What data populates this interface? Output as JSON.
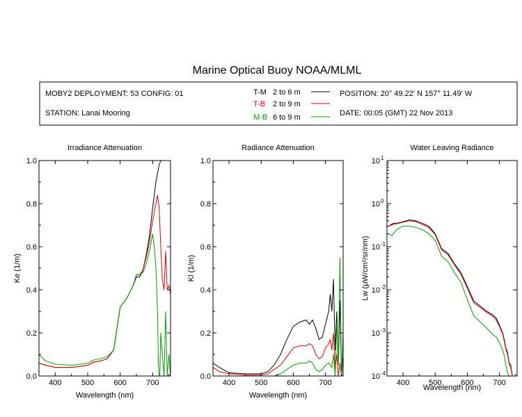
{
  "title": "Marine Optical Buoy NOAA/MLML",
  "info": {
    "deployment": "MOBY2 DEPLOYMENT: 53 CONFIG: 01",
    "station": "STATION: Lanai Mooring",
    "position": "POSITION: 20° 49.22' N   157° 11.49' W",
    "date": "DATE: 00:05 (GMT) 22 Nov 2013"
  },
  "legend": [
    {
      "code": "T-M",
      "range": "2 to 6  m",
      "color": "#000000"
    },
    {
      "code": "T-B",
      "range": "2 to 9  m",
      "color": "#e00000"
    },
    {
      "code": "M-B",
      "range": "6 to 9  m",
      "color": "#00a000"
    }
  ],
  "chart_data": [
    {
      "type": "line",
      "title": "Irradiance Attenuation",
      "xlabel": "Wavelength (nm)",
      "ylabel": "Ke  (1/m)",
      "xlim": [
        350,
        755
      ],
      "ylim": [
        0,
        1.0
      ],
      "xticks": [
        400,
        500,
        600,
        700
      ],
      "yticks": [
        "0.0",
        "0.2",
        "0.4",
        "0.6",
        "0.8",
        "1.0"
      ],
      "series": [
        {
          "name": "T-M",
          "color": "#000000",
          "x": [
            350,
            370,
            400,
            450,
            480,
            500,
            520,
            540,
            560,
            580,
            600,
            610,
            620,
            640,
            650,
            660,
            670,
            680,
            690,
            700,
            710,
            720,
            725,
            730,
            740,
            750,
            755
          ],
          "y": [
            0.06,
            0.05,
            0.04,
            0.04,
            0.045,
            0.05,
            0.065,
            0.07,
            0.08,
            0.12,
            0.32,
            0.34,
            0.36,
            0.42,
            0.46,
            0.46,
            0.49,
            0.56,
            0.65,
            0.78,
            0.9,
            0.98,
            1.0,
            1.0,
            1.0,
            1.0,
            1.0
          ]
        },
        {
          "name": "T-B",
          "color": "#e00000",
          "x": [
            350,
            370,
            400,
            450,
            480,
            500,
            520,
            540,
            560,
            580,
            600,
            610,
            620,
            640,
            650,
            660,
            670,
            680,
            690,
            700,
            710,
            715,
            720,
            725,
            730,
            735,
            740,
            745,
            750,
            755
          ],
          "y": [
            0.06,
            0.05,
            0.04,
            0.04,
            0.045,
            0.05,
            0.065,
            0.07,
            0.08,
            0.12,
            0.32,
            0.34,
            0.36,
            0.42,
            0.47,
            0.47,
            0.49,
            0.55,
            0.62,
            0.72,
            0.8,
            0.84,
            0.78,
            0.6,
            0.45,
            0.4,
            0.58,
            0.4,
            0.42,
            0.38
          ]
        },
        {
          "name": "M-B",
          "color": "#00a000",
          "x": [
            350,
            370,
            400,
            450,
            480,
            500,
            520,
            540,
            560,
            580,
            600,
            610,
            620,
            640,
            650,
            660,
            670,
            680,
            690,
            700,
            705,
            710,
            715,
            718,
            720,
            722,
            725,
            730,
            735,
            740,
            745,
            750,
            755
          ],
          "y": [
            0.1,
            0.07,
            0.055,
            0.05,
            0.055,
            0.06,
            0.075,
            0.08,
            0.09,
            0.12,
            0.32,
            0.34,
            0.36,
            0.42,
            0.47,
            0.47,
            0.48,
            0.52,
            0.58,
            0.66,
            0.6,
            0.5,
            0.3,
            0.05,
            0.0,
            0.0,
            0.2,
            0.1,
            0.0,
            0.3,
            0.0,
            0.1,
            0.0
          ]
        }
      ]
    },
    {
      "type": "line",
      "title": "Radiance Attenuation",
      "xlabel": "Wavelength (nm)",
      "ylabel": "Kl  (1/m)",
      "xlim": [
        350,
        755
      ],
      "ylim": [
        0,
        1.0
      ],
      "xticks": [
        400,
        500,
        600,
        700
      ],
      "yticks": [
        "0.0",
        "0.2",
        "0.4",
        "0.6",
        "0.8",
        "1.0"
      ],
      "series": [
        {
          "name": "T-M",
          "color": "#000000",
          "x": [
            350,
            370,
            400,
            450,
            500,
            520,
            540,
            560,
            580,
            600,
            620,
            640,
            650,
            660,
            670,
            680,
            690,
            700,
            710,
            715,
            720,
            725,
            730,
            735,
            740,
            745,
            750,
            755
          ],
          "y": [
            0.06,
            0.04,
            0.015,
            0.01,
            0.01,
            0.02,
            0.05,
            0.1,
            0.17,
            0.23,
            0.25,
            0.26,
            0.24,
            0.26,
            0.22,
            0.17,
            0.18,
            0.24,
            0.3,
            0.38,
            0.3,
            0.45,
            0.12,
            0.3,
            0.05,
            0.35,
            0.0,
            0.1
          ]
        },
        {
          "name": "T-B",
          "color": "#e00000",
          "x": [
            350,
            370,
            400,
            450,
            500,
            520,
            540,
            560,
            580,
            600,
            620,
            640,
            650,
            660,
            670,
            680,
            690,
            700,
            710,
            715,
            720,
            725,
            730,
            735,
            740,
            745,
            750
          ],
          "y": [
            0.04,
            0.02,
            0.01,
            0.005,
            0.005,
            0.01,
            0.03,
            0.05,
            0.09,
            0.13,
            0.14,
            0.14,
            0.15,
            0.14,
            0.1,
            0.08,
            0.09,
            0.13,
            0.15,
            0.17,
            0.12,
            0.2,
            0.03,
            0.1,
            0.0,
            0.06,
            0.0
          ]
        },
        {
          "name": "M-B",
          "color": "#00a000",
          "x": [
            350,
            400,
            500,
            540,
            560,
            580,
            600,
            620,
            640,
            650,
            660,
            670,
            680,
            690,
            700,
            710,
            720,
            725,
            730,
            735,
            740,
            745,
            750,
            755
          ],
          "y": [
            0.0,
            0.0,
            0.0,
            0.0,
            0.01,
            0.03,
            0.05,
            0.06,
            0.06,
            0.07,
            0.06,
            0.03,
            0.02,
            0.03,
            0.05,
            0.06,
            0.04,
            0.1,
            0.0,
            0.25,
            0.05,
            0.55,
            0.0,
            0.2
          ]
        }
      ]
    },
    {
      "type": "line",
      "title": "Water Leaving Radiance",
      "xlabel": "Wavelength (nm)",
      "ylabel": "Lw  (μW/cm²/sr/nm)",
      "xlim": [
        350,
        755
      ],
      "yscale": "log",
      "ylim": [
        0.0001,
        10
      ],
      "xticks": [
        400,
        500,
        600,
        700
      ],
      "yticks": [
        {
          "base": "10",
          "exp": "1",
          "value": 10
        },
        {
          "base": "10",
          "exp": "0",
          "value": 1
        },
        {
          "base": "10",
          "exp": "-1",
          "value": 0.1
        },
        {
          "base": "10",
          "exp": "-2",
          "value": 0.01
        },
        {
          "base": "10",
          "exp": "-3",
          "value": 0.001
        },
        {
          "base": "10",
          "exp": "-4",
          "value": 0.0001
        }
      ],
      "series": [
        {
          "name": "T-M",
          "color": "#000000",
          "x": [
            355,
            370,
            380,
            400,
            420,
            440,
            460,
            480,
            500,
            520,
            540,
            560,
            580,
            600,
            620,
            640,
            660,
            680,
            690,
            700,
            710,
            715,
            720,
            725,
            730,
            735,
            740
          ],
          "y": [
            0.3,
            0.35,
            0.35,
            0.38,
            0.42,
            0.4,
            0.35,
            0.3,
            0.2,
            0.09,
            0.07,
            0.04,
            0.025,
            0.012,
            0.0055,
            0.0042,
            0.0032,
            0.0026,
            0.0022,
            0.0015,
            0.001,
            0.0007,
            0.00045,
            0.00035,
            0.0002,
            0.00018,
            0.0001
          ]
        },
        {
          "name": "T-B",
          "color": "#e00000",
          "x": [
            355,
            370,
            380,
            400,
            420,
            440,
            460,
            480,
            500,
            520,
            540,
            560,
            580,
            600,
            620,
            640,
            660,
            680,
            690,
            700,
            710,
            715,
            720,
            725,
            730,
            735,
            740
          ],
          "y": [
            0.3,
            0.33,
            0.34,
            0.37,
            0.4,
            0.38,
            0.33,
            0.28,
            0.19,
            0.085,
            0.065,
            0.038,
            0.023,
            0.011,
            0.005,
            0.0039,
            0.003,
            0.0024,
            0.002,
            0.0014,
            0.00095,
            0.00065,
            0.00042,
            0.00032,
            0.00019,
            0.00016,
            0.0001
          ]
        },
        {
          "name": "M-B",
          "color": "#00a000",
          "x": [
            355,
            365,
            380,
            400,
            420,
            440,
            460,
            480,
            500,
            520,
            540,
            560,
            580,
            600,
            620,
            640,
            660,
            680,
            690,
            700,
            710,
            715,
            720,
            725,
            730
          ],
          "y": [
            0.2,
            0.18,
            0.25,
            0.3,
            0.3,
            0.28,
            0.25,
            0.2,
            0.14,
            0.06,
            0.045,
            0.025,
            0.015,
            0.006,
            0.0025,
            0.0018,
            0.0013,
            0.0009,
            0.0008,
            0.0006,
            0.0004,
            0.0003,
            0.00018,
            0.00012,
            0.0001
          ]
        }
      ]
    }
  ]
}
